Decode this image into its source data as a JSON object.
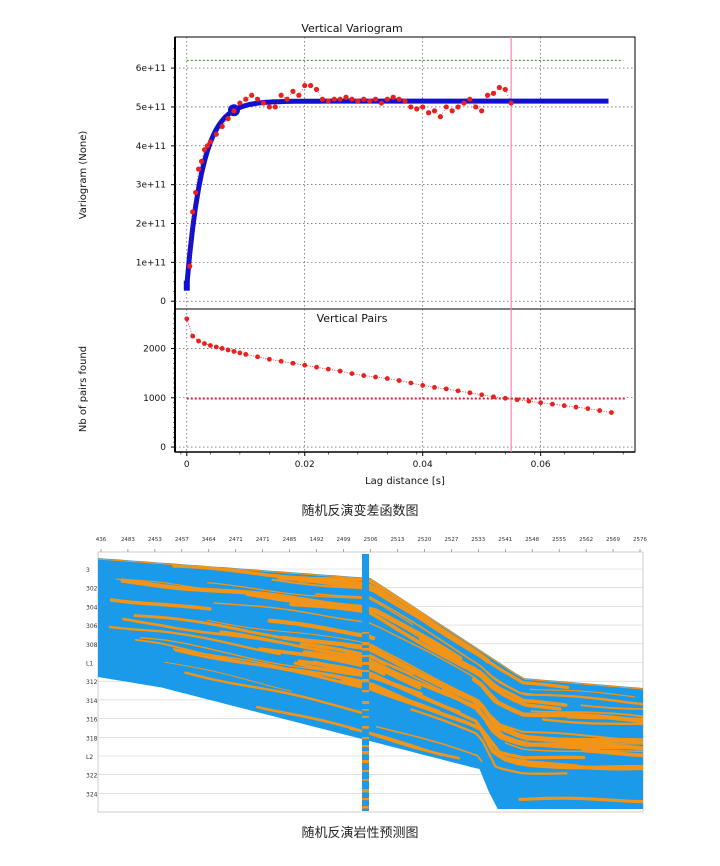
{
  "figure1": {
    "caption": "随机反演变差函数图",
    "variogram": {
      "title": "Vertical Variogram",
      "ylabel": "Variogram (None)",
      "yticks": [
        "0",
        "1e+11",
        "2e+11",
        "3e+11",
        "4e+11",
        "5e+11",
        "6e+11"
      ]
    },
    "pairs": {
      "title": "Vertical Pairs",
      "ylabel": "Nb of pairs found",
      "yticks": [
        "0",
        "1000",
        "2000"
      ]
    },
    "xlabel": "Lag distance [s]",
    "xticks": [
      "0",
      "0.02",
      "0.04",
      "0.06"
    ]
  },
  "figure2": {
    "caption": "随机反演岩性预测图"
  },
  "chart_data": [
    {
      "type": "scatter",
      "title": "Vertical Variogram",
      "xlabel": "Lag distance [s]",
      "ylabel": "Variogram (None)",
      "xlim": [
        -0.002,
        0.076
      ],
      "ylim": [
        -20000000000.0,
        680000000000.0
      ],
      "reference_lines": {
        "sill_dotted_green": 620000000000.0,
        "vertical_pink_x": 0.055
      },
      "colors": {
        "experimental": "#e82020",
        "model": "#1010d0",
        "sill": "#2a8a2a",
        "marker": "#ff80b0"
      },
      "series": [
        {
          "style": "points",
          "x": [
            0.0005,
            0.001,
            0.0015,
            0.002,
            0.0025,
            0.003,
            0.0035,
            0.004,
            0.005,
            0.006,
            0.007,
            0.008,
            0.009,
            0.01,
            0.011,
            0.012,
            0.013,
            0.014,
            0.015,
            0.016,
            0.017,
            0.018,
            0.019,
            0.02,
            0.021,
            0.022,
            0.023,
            0.024,
            0.025,
            0.026,
            0.027,
            0.028,
            0.029,
            0.03,
            0.031,
            0.032,
            0.033,
            0.034,
            0.035,
            0.036,
            0.037,
            0.038,
            0.039,
            0.04,
            0.041,
            0.042,
            0.043,
            0.044,
            0.045,
            0.046,
            0.047,
            0.048,
            0.049,
            0.05,
            0.051,
            0.052,
            0.053,
            0.054,
            0.055
          ],
          "values": [
            90000000000.0,
            230000000000.0,
            280000000000.0,
            340000000000.0,
            360000000000.0,
            390000000000.0,
            400000000000.0,
            410000000000.0,
            430000000000.0,
            450000000000.0,
            470000000000.0,
            490000000000.0,
            510000000000.0,
            520000000000.0,
            530000000000.0,
            520000000000.0,
            510000000000.0,
            500000000000.0,
            500000000000.0,
            530000000000.0,
            520000000000.0,
            540000000000.0,
            530000000000.0,
            555000000000.0,
            555000000000.0,
            545000000000.0,
            520000000000.0,
            515000000000.0,
            520000000000.0,
            520000000000.0,
            525000000000.0,
            520000000000.0,
            515000000000.0,
            520000000000.0,
            515000000000.0,
            520000000000.0,
            510000000000.0,
            520000000000.0,
            525000000000.0,
            520000000000.0,
            515000000000.0,
            500000000000.0,
            495000000000.0,
            500000000000.0,
            485000000000.0,
            490000000000.0,
            475000000000.0,
            500000000000.0,
            490000000000.0,
            500000000000.0,
            510000000000.0,
            520000000000.0,
            500000000000.0,
            490000000000.0,
            530000000000.0,
            535000000000.0,
            550000000000.0,
            545000000000.0,
            510000000000.0
          ]
        },
        {
          "style": "model-curve",
          "range": 0.008,
          "nugget": 40000000000.0,
          "sill": 515000000000.0,
          "x_end": 0.072
        }
      ]
    },
    {
      "type": "line",
      "title": "Vertical Pairs",
      "xlabel": "Lag distance [s]",
      "ylabel": "Nb of pairs found",
      "xlim": [
        -0.002,
        0.076
      ],
      "ylim": [
        -100,
        2800
      ],
      "reference_lines": {
        "dotted_red": 980,
        "vertical_pink_x": 0.055
      },
      "colors": {
        "points": "#e82020"
      },
      "series": [
        {
          "x": [
            0.0,
            0.001,
            0.002,
            0.003,
            0.004,
            0.005,
            0.006,
            0.007,
            0.008,
            0.009,
            0.01,
            0.012,
            0.014,
            0.016,
            0.018,
            0.02,
            0.022,
            0.024,
            0.026,
            0.028,
            0.03,
            0.032,
            0.034,
            0.036,
            0.038,
            0.04,
            0.042,
            0.044,
            0.046,
            0.048,
            0.05,
            0.052,
            0.054,
            0.056,
            0.058,
            0.06,
            0.062,
            0.064,
            0.066,
            0.068,
            0.07,
            0.072
          ],
          "values": [
            2600,
            2250,
            2150,
            2100,
            2060,
            2030,
            2000,
            1970,
            1940,
            1910,
            1880,
            1830,
            1780,
            1740,
            1700,
            1660,
            1620,
            1580,
            1540,
            1490,
            1450,
            1420,
            1390,
            1350,
            1300,
            1250,
            1210,
            1180,
            1140,
            1100,
            1060,
            1020,
            990,
            960,
            930,
            900,
            870,
            840,
            810,
            780,
            740,
            700
          ]
        }
      ]
    },
    {
      "type": "heatmap",
      "description_values": {
        "top_labels": [
          "436",
          "2483",
          "2453",
          "2457",
          "3464",
          "2471",
          "2471",
          "2485",
          "1492",
          "2499",
          "2506",
          "2513",
          "2520",
          "2527",
          "2533",
          "2541",
          "2548",
          "2555",
          "2562",
          "2569",
          "2576"
        ],
        "left_labels": [
          "3",
          "302",
          "304",
          "306",
          "308",
          "L1",
          "312",
          "314",
          "316",
          "318",
          "L2",
          "322",
          "324"
        ],
        "classes": [
          "blue",
          "orange"
        ],
        "colors": {
          "class1": "#1a9ae8",
          "class2": "#f29417"
        }
      }
    }
  ]
}
